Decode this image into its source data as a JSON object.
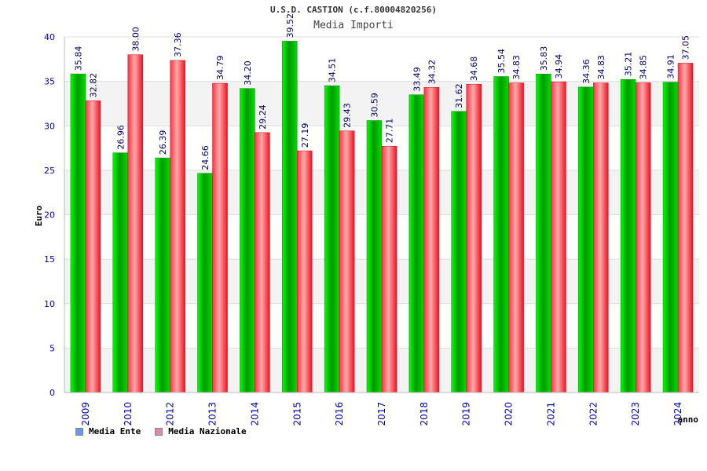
{
  "chart_data": {
    "type": "bar",
    "title": "U.S.D. CASTION (c.f.80004820256)",
    "subtitle": "Media Importi",
    "ylabel": "Euro",
    "xlabel": "anno",
    "ylim": [
      0,
      40
    ],
    "y_ticks": [
      "0",
      "5",
      "10",
      "15",
      "20",
      "25",
      "30",
      "35",
      "40"
    ],
    "grid": true,
    "legend_position": "bottom-left",
    "categories": [
      "2009",
      "2010",
      "2012",
      "2013",
      "2014",
      "2015",
      "2016",
      "2017",
      "2018",
      "2019",
      "2020",
      "2021",
      "2022",
      "2023",
      "2024"
    ],
    "series": [
      {
        "name": "Media Ente",
        "color": "#00c000",
        "legend_color": "#6699ee",
        "values": [
          35.84,
          26.96,
          26.39,
          24.66,
          34.2,
          39.52,
          34.51,
          30.59,
          33.49,
          31.62,
          35.54,
          35.83,
          34.36,
          35.21,
          34.91
        ],
        "labels": [
          "35.84",
          "26.96",
          "26.39",
          "24.66",
          "34.20",
          "39.52",
          "34.51",
          "30.59",
          "33.49",
          "31.62",
          "35.54",
          "35.83",
          "34.36",
          "35.21",
          "34.91"
        ]
      },
      {
        "name": "Media Nazionale",
        "color": "#e8303a",
        "legend_color": "#dd88aa",
        "values": [
          32.82,
          38.0,
          37.36,
          34.79,
          29.24,
          27.19,
          29.43,
          27.71,
          34.32,
          34.68,
          34.83,
          34.94,
          34.83,
          34.85,
          37.05
        ],
        "labels": [
          "32.82",
          "38.00",
          "37.36",
          "34.79",
          "29.24",
          "27.19",
          "29.43",
          "27.71",
          "34.32",
          "34.68",
          "34.83",
          "34.94",
          "34.83",
          "34.85",
          "37.05"
        ]
      }
    ]
  }
}
